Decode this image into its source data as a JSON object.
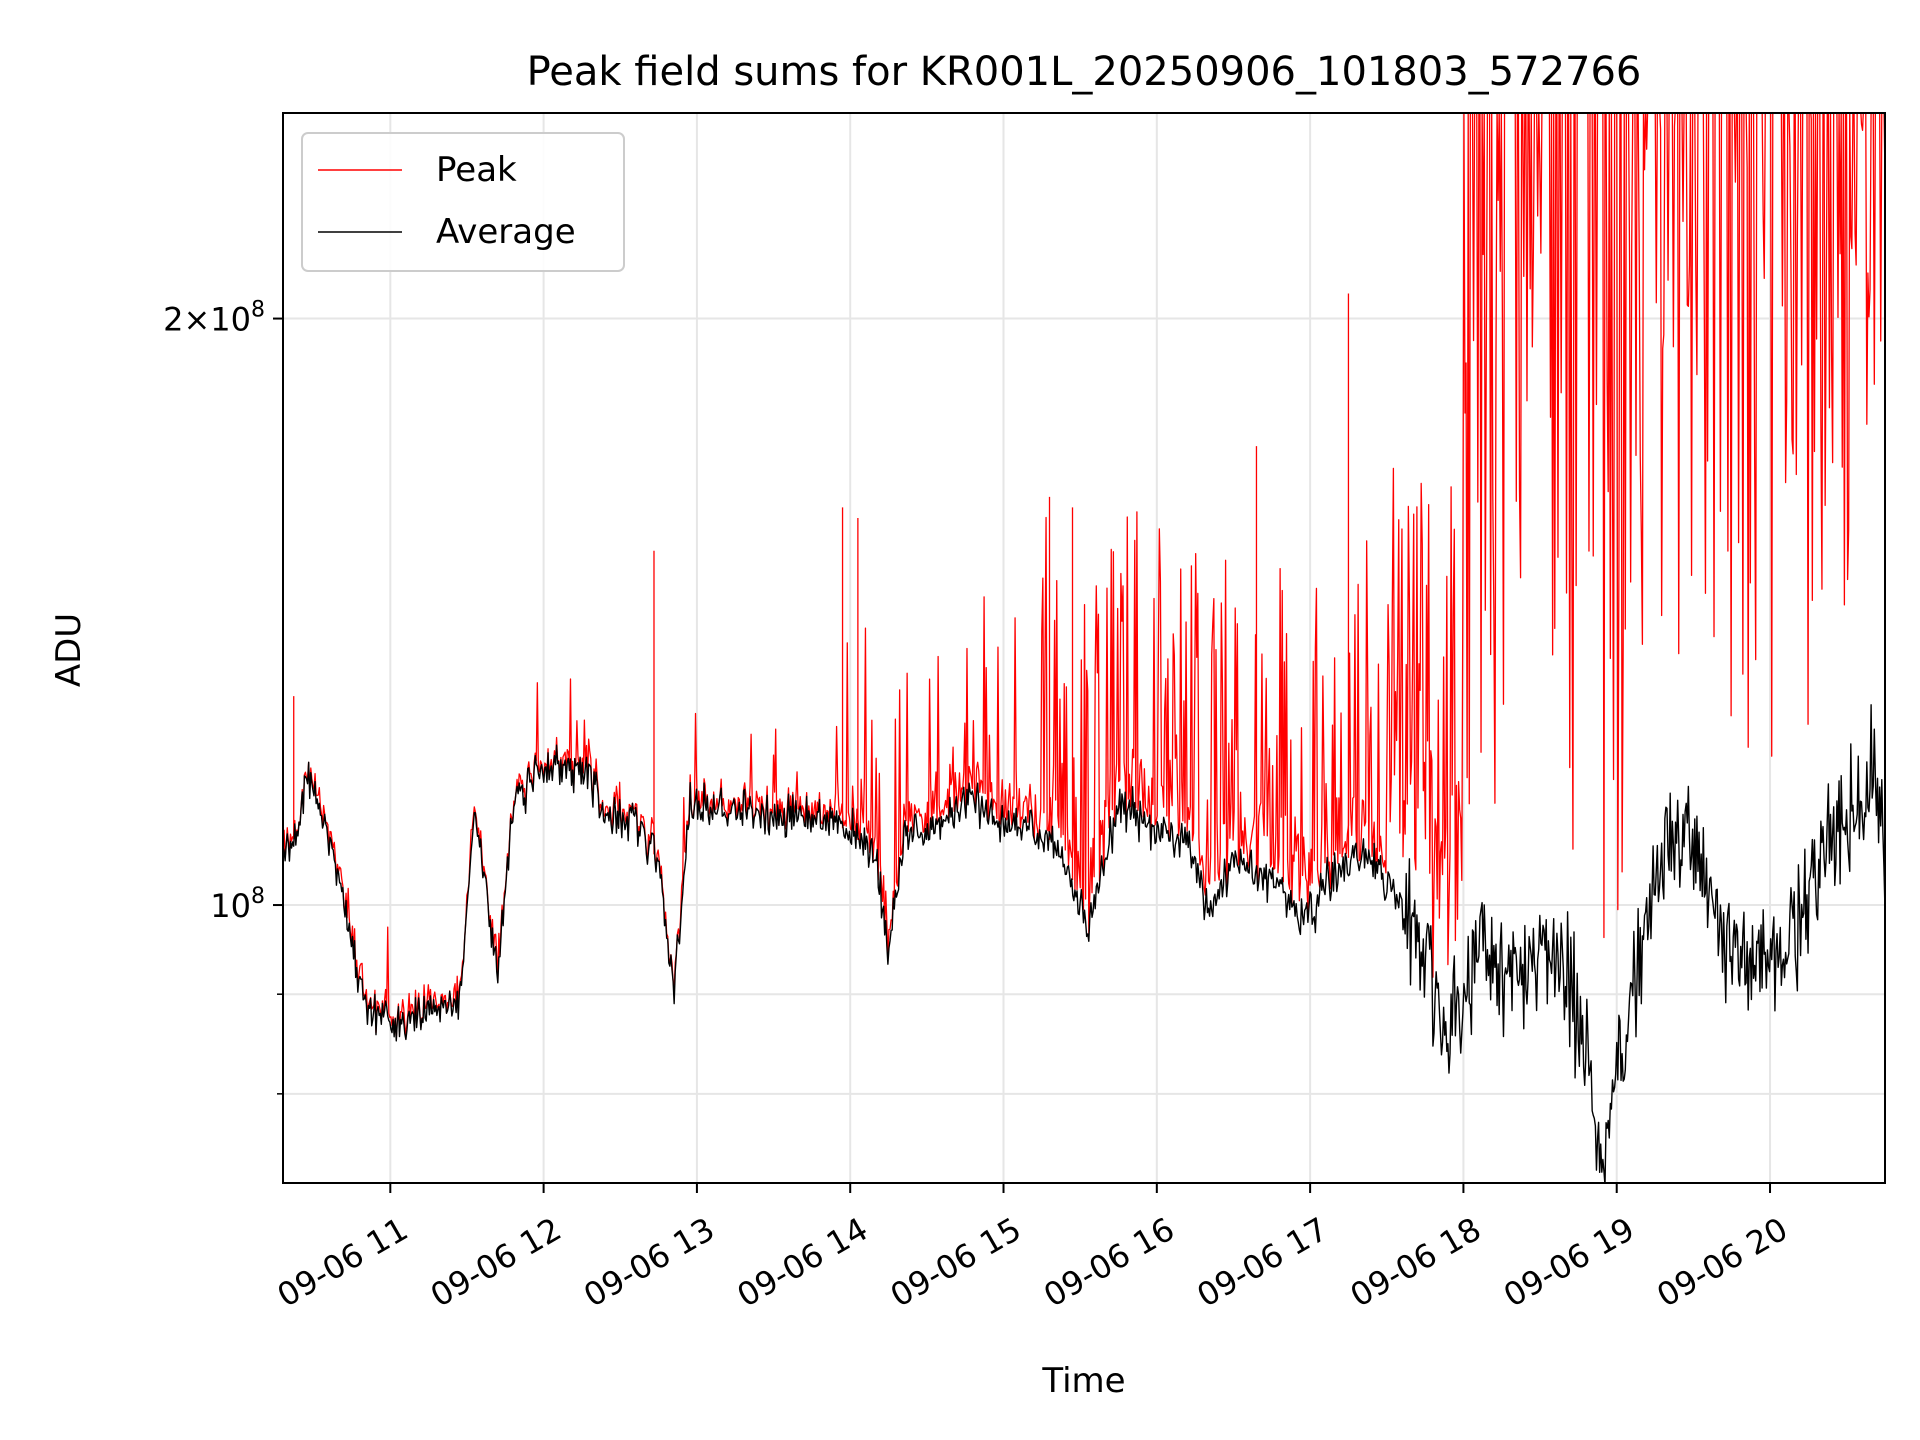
{
  "chart_data": {
    "type": "line",
    "title": "Peak field sums for KR001L_20250906_101803_572766",
    "xlabel": "Time",
    "ylabel": "ADU",
    "yscale": "log",
    "grid": true,
    "legend_position": "upper-left",
    "x_range_hours": [
      10.3,
      20.75
    ],
    "ylim": [
      72000000,
      255000000
    ],
    "x_ticks": [
      {
        "hour": 11,
        "label": "09-06 11"
      },
      {
        "hour": 12,
        "label": "09-06 12"
      },
      {
        "hour": 13,
        "label": "09-06 13"
      },
      {
        "hour": 14,
        "label": "09-06 14"
      },
      {
        "hour": 15,
        "label": "09-06 15"
      },
      {
        "hour": 16,
        "label": "09-06 16"
      },
      {
        "hour": 17,
        "label": "09-06 17"
      },
      {
        "hour": 18,
        "label": "09-06 18"
      },
      {
        "hour": 19,
        "label": "09-06 19"
      },
      {
        "hour": 20,
        "label": "09-06 20"
      }
    ],
    "y_major_ticks": [
      {
        "value": 100000000,
        "base": "10",
        "exp": "8",
        "mantissa": ""
      },
      {
        "value": 200000000,
        "base": "10",
        "exp": "8",
        "mantissa": "2"
      }
    ],
    "y_minor_ticks": [
      80000000,
      90000000
    ],
    "series": [
      {
        "name": "Peak",
        "color": "#ff0000",
        "description": "Peak field sum; tracks average until ~14:00, then increasingly noisy spikes reaching top of plot after ~18:00",
        "spikes": [
          {
            "hour": 10.37,
            "value": 128000000
          },
          {
            "hour": 12.72,
            "value": 152000000
          },
          {
            "hour": 13.95,
            "value": 160000000
          },
          {
            "hour": 14.05,
            "value": 158000000
          },
          {
            "hour": 15.3,
            "value": 162000000
          },
          {
            "hour": 15.45,
            "value": 160000000
          },
          {
            "hour": 16.65,
            "value": 172000000
          },
          {
            "hour": 17.25,
            "value": 206000000
          }
        ]
      },
      {
        "name": "Average",
        "color": "#000000",
        "anchors": [
          [
            10.3,
            106000000
          ],
          [
            10.4,
            109000000
          ],
          [
            10.45,
            117000000
          ],
          [
            10.55,
            112000000
          ],
          [
            10.7,
            100000000
          ],
          [
            10.85,
            88000000
          ],
          [
            11.05,
            86500000
          ],
          [
            11.2,
            88000000
          ],
          [
            11.45,
            89000000
          ],
          [
            11.55,
            111000000
          ],
          [
            11.62,
            103000000
          ],
          [
            11.7,
            92000000
          ],
          [
            11.8,
            113000000
          ],
          [
            11.95,
            117000000
          ],
          [
            12.1,
            118000000
          ],
          [
            12.3,
            117000000
          ],
          [
            12.4,
            111000000
          ],
          [
            12.6,
            111000000
          ],
          [
            12.75,
            105000000
          ],
          [
            12.85,
            90000000
          ],
          [
            12.95,
            112000000
          ],
          [
            13.2,
            112000000
          ],
          [
            13.5,
            111000000
          ],
          [
            13.8,
            111000000
          ],
          [
            14.0,
            109000000
          ],
          [
            14.15,
            106000000
          ],
          [
            14.25,
            95000000
          ],
          [
            14.35,
            108000000
          ],
          [
            14.6,
            110000000
          ],
          [
            14.8,
            114000000
          ],
          [
            15.0,
            110000000
          ],
          [
            15.3,
            108000000
          ],
          [
            15.45,
            103000000
          ],
          [
            15.55,
            97000000
          ],
          [
            15.75,
            113000000
          ],
          [
            16.0,
            109000000
          ],
          [
            16.2,
            108000000
          ],
          [
            16.35,
            99000000
          ],
          [
            16.5,
            106000000
          ],
          [
            16.75,
            103000000
          ],
          [
            16.95,
            98000000
          ],
          [
            17.1,
            102000000
          ],
          [
            17.3,
            107000000
          ],
          [
            17.5,
            103000000
          ],
          [
            17.7,
            98000000
          ],
          [
            17.88,
            86000000
          ],
          [
            18.1,
            94000000
          ],
          [
            18.3,
            92000000
          ],
          [
            18.5,
            96000000
          ],
          [
            18.7,
            92000000
          ],
          [
            18.9,
            74000000
          ],
          [
            19.1,
            91000000
          ],
          [
            19.3,
            106000000
          ],
          [
            19.45,
            109000000
          ],
          [
            19.6,
            101000000
          ],
          [
            19.75,
            94000000
          ],
          [
            19.95,
            92000000
          ],
          [
            20.15,
            97000000
          ],
          [
            20.35,
            106000000
          ],
          [
            20.55,
            112000000
          ],
          [
            20.68,
            116000000
          ],
          [
            20.75,
            108000000
          ]
        ]
      }
    ]
  }
}
